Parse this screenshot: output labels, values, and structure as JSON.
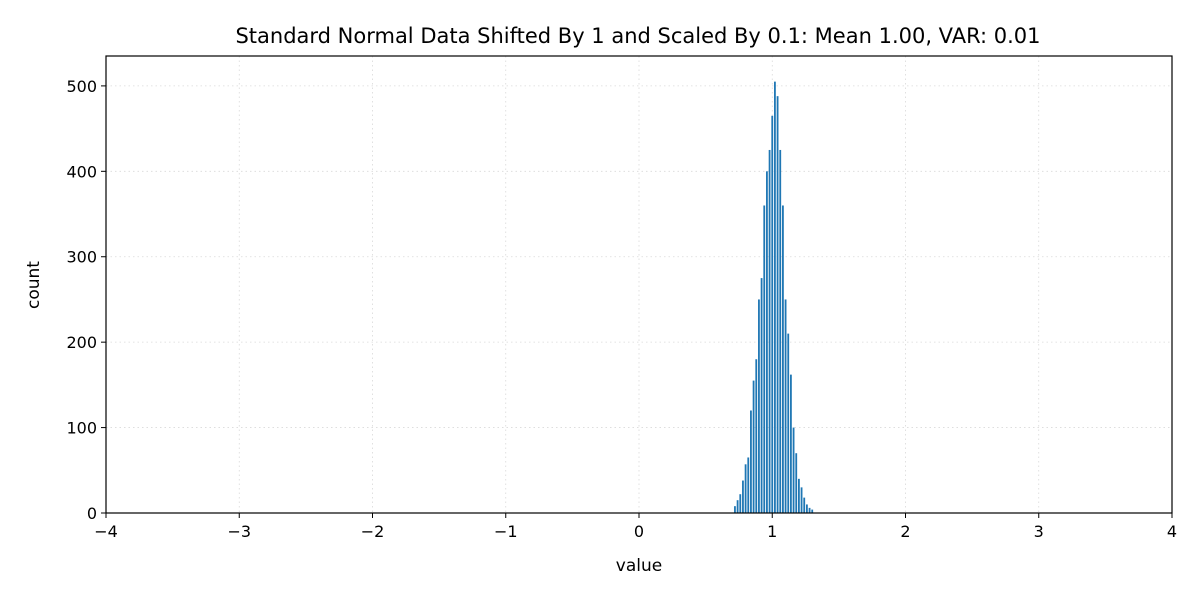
{
  "chart_data": {
    "type": "bar",
    "title": "Standard Normal Data Shifted By 1 and Scaled By 0.1: Mean 1.00, VAR: 0.01",
    "xlabel": "value",
    "ylabel": "count",
    "xlim": [
      -4,
      4
    ],
    "ylim": [
      0,
      535
    ],
    "x_ticks": [
      -4,
      -3,
      -2,
      -1,
      0,
      1,
      2,
      3,
      4
    ],
    "x_tick_labels": [
      "−4",
      "−3",
      "−2",
      "−1",
      "0",
      "1",
      "2",
      "3",
      "4"
    ],
    "y_ticks": [
      0,
      100,
      200,
      300,
      400,
      500
    ],
    "y_tick_labels": [
      "0",
      "100",
      "200",
      "300",
      "400",
      "500"
    ],
    "grid": true,
    "legend": "none",
    "bar_color": "#1f77b4",
    "series": [
      {
        "x": [
          0.72,
          0.74,
          0.76,
          0.78,
          0.8,
          0.82,
          0.84,
          0.86,
          0.88,
          0.9,
          0.92,
          0.94,
          0.96,
          0.98,
          1.0,
          1.02,
          1.04,
          1.06,
          1.08,
          1.1,
          1.12,
          1.14,
          1.16,
          1.18,
          1.2,
          1.22,
          1.24,
          1.26,
          1.28,
          1.3
        ],
        "values": [
          8,
          15,
          22,
          38,
          57,
          65,
          120,
          155,
          180,
          250,
          275,
          360,
          400,
          425,
          465,
          505,
          488,
          425,
          360,
          250,
          210,
          162,
          100,
          70,
          40,
          30,
          18,
          10,
          6,
          4
        ]
      }
    ]
  }
}
